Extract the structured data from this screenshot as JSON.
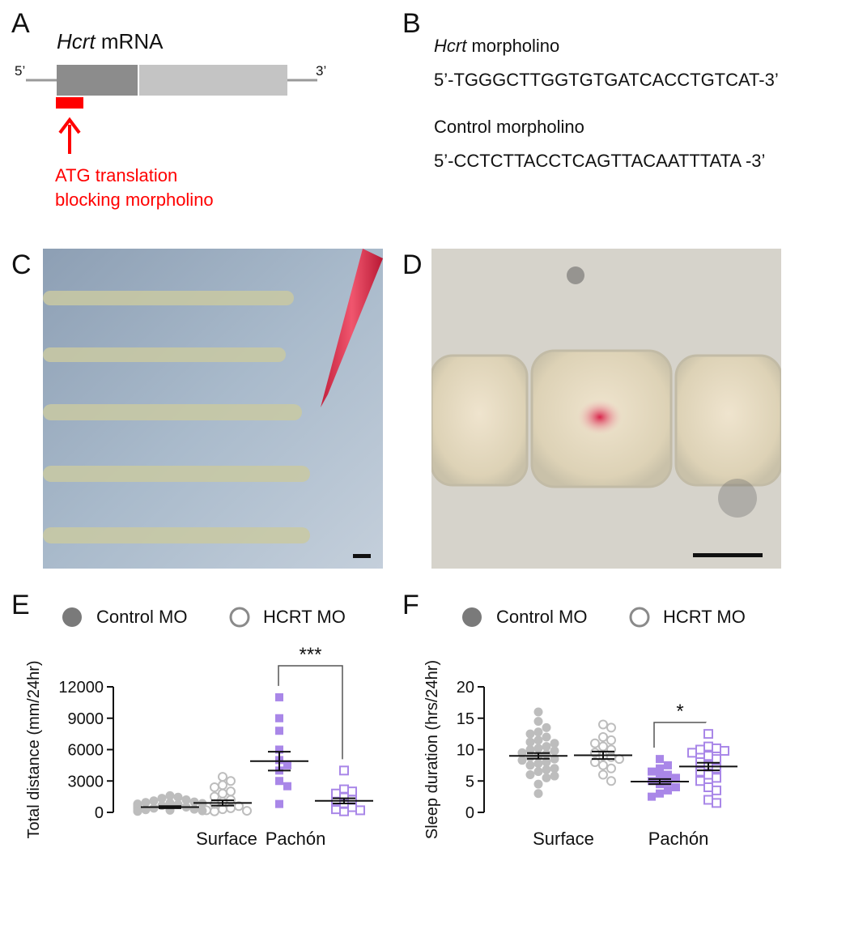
{
  "panels": {
    "A": {
      "letter": "A",
      "gene_italic": "Hcrt",
      "gene_rest": " mRNA",
      "five_prime": "5’",
      "three_prime": "3’",
      "arrow_label_line1": "ATG translation",
      "arrow_label_line2": "blocking morpholino",
      "colors": {
        "exon_dark": "#8c8c8c",
        "exon_light": "#c4c4c4",
        "line": "#9a9a9a",
        "marker": "#ff0000"
      }
    },
    "B": {
      "letter": "B",
      "hcrt_italic": "Hcrt",
      "hcrt_rest": " morpholino",
      "hcrt_seq": "5’-TGGGCTTGGTGTGATCACCTGTCAT-3’",
      "control_label": "Control morpholino",
      "control_seq": "5’-CCTCTTACCTCAGTTACAATTTATA -3’"
    },
    "C": {
      "letter": "C"
    },
    "D": {
      "letter": "D"
    },
    "E": {
      "letter": "E",
      "legend_control": "Control MO",
      "legend_hcrt": "HCRT MO",
      "significance": "***"
    },
    "F": {
      "letter": "F",
      "legend_control": "Control MO",
      "legend_hcrt": "HCRT MO",
      "significance": "*"
    }
  },
  "colors": {
    "surface": "#bdbdbd",
    "pachon": "#a987e8",
    "legend_filled": "#7a7a7a",
    "legend_open": "#8a8a8a",
    "mean_bar": "#111111"
  },
  "chart_data": [
    {
      "type": "scatter",
      "panel": "E",
      "ylabel": "Total distance (mm/24hr)",
      "xlabel": "",
      "ylim": [
        0,
        12000
      ],
      "yticks": [
        0,
        3000,
        6000,
        9000,
        12000
      ],
      "groups": [
        "Surface",
        "Pachón"
      ],
      "legend": [
        "Control MO",
        "HCRT MO"
      ],
      "series": [
        {
          "name": "Control MO",
          "group": "Surface",
          "mean": 500,
          "sem": 100,
          "values": [
            1600,
            1450,
            1350,
            1200,
            1100,
            1000,
            950,
            900,
            850,
            800,
            750,
            700,
            650,
            600,
            550,
            500,
            450,
            400,
            350,
            300,
            250,
            200,
            150,
            120,
            100
          ]
        },
        {
          "name": "HCRT MO",
          "group": "Surface",
          "mean": 900,
          "sem": 250,
          "values": [
            3400,
            3000,
            2600,
            2400,
            2000,
            1800,
            1500,
            1200,
            1000,
            800,
            600,
            400,
            300,
            200,
            150,
            100
          ]
        },
        {
          "name": "Control MO",
          "group": "Pachón",
          "mean": 4900,
          "sem": 900,
          "values": [
            11000,
            9000,
            7800,
            6000,
            5000,
            4500,
            4000,
            3000,
            2500,
            800
          ]
        },
        {
          "name": "HCRT MO",
          "group": "Pachón",
          "mean": 1100,
          "sem": 250,
          "values": [
            4000,
            2200,
            2000,
            1800,
            1500,
            1200,
            1000,
            800,
            500,
            300,
            200,
            100
          ]
        }
      ]
    },
    {
      "type": "scatter",
      "panel": "F",
      "ylabel": "Sleep duration (hrs/24hr)",
      "xlabel": "",
      "ylim": [
        0,
        20
      ],
      "yticks": [
        0,
        5,
        10,
        15,
        20
      ],
      "groups": [
        "Surface",
        "Pachón"
      ],
      "legend": [
        "Control MO",
        "HCRT MO"
      ],
      "series": [
        {
          "name": "Control MO",
          "group": "Surface",
          "mean": 9.0,
          "sem": 0.45,
          "values": [
            16,
            14.5,
            13.5,
            12.8,
            12.5,
            12,
            11.5,
            11.2,
            11,
            10.5,
            10.2,
            10,
            9.8,
            9.5,
            9.3,
            9,
            8.8,
            8.5,
            8.3,
            8,
            7.8,
            7.5,
            7,
            6.8,
            6.5,
            6,
            5.8,
            5.5,
            4.5,
            3
          ]
        },
        {
          "name": "HCRT MO",
          "group": "Surface",
          "mean": 9.1,
          "sem": 0.6,
          "values": [
            14,
            13.5,
            12,
            11.5,
            11,
            10.5,
            10,
            9.5,
            9,
            8.8,
            8.5,
            8,
            7.5,
            7,
            6,
            5
          ]
        },
        {
          "name": "Control MO",
          "group": "Pachón",
          "mean": 4.9,
          "sem": 0.4,
          "values": [
            8.5,
            7.5,
            7,
            6.5,
            6,
            5.8,
            5.5,
            5,
            4.8,
            4.5,
            4,
            3.5,
            3,
            2.5
          ]
        },
        {
          "name": "HCRT MO",
          "group": "Pachón",
          "mean": 7.3,
          "sem": 0.6,
          "values": [
            12.5,
            10.5,
            10.2,
            10,
            9.8,
            9.5,
            9,
            8.5,
            8,
            7.5,
            7,
            6.5,
            6,
            5.5,
            5,
            4,
            3.5,
            2,
            1.5
          ]
        }
      ]
    }
  ]
}
